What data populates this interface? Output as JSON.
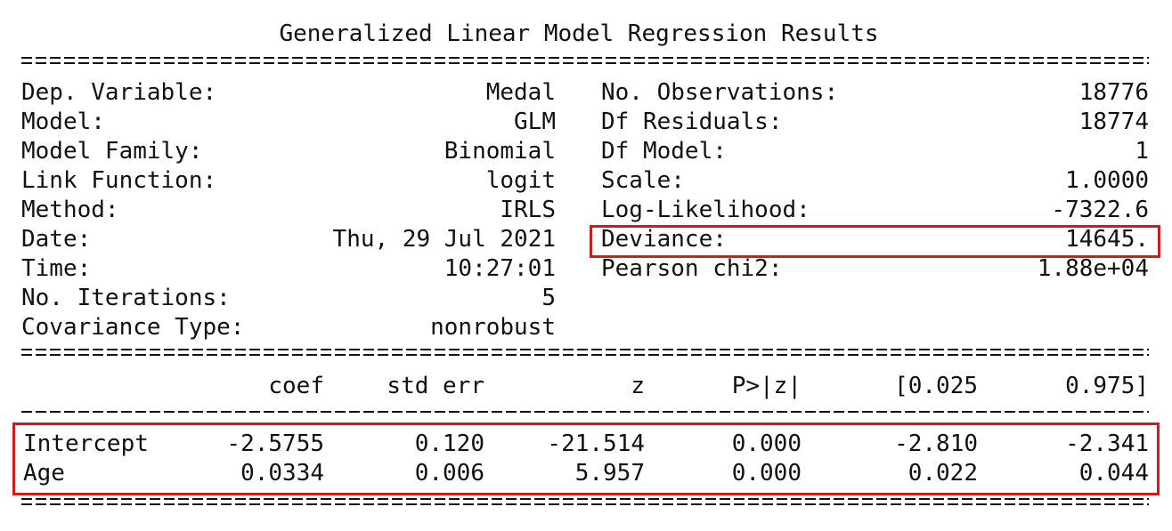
{
  "title": "Generalized Linear Model Regression Results",
  "left_info": [
    {
      "label": "Dep. Variable:",
      "value": "Medal"
    },
    {
      "label": "Model:",
      "value": "GLM"
    },
    {
      "label": "Model Family:",
      "value": "Binomial"
    },
    {
      "label": "Link Function:",
      "value": "logit"
    },
    {
      "label": "Method:",
      "value": "IRLS"
    },
    {
      "label": "Date:",
      "value": "Thu, 29 Jul 2021"
    },
    {
      "label": "Time:",
      "value": "10:27:01"
    },
    {
      "label": "No. Iterations:",
      "value": "5"
    },
    {
      "label": "Covariance Type:",
      "value": "nonrobust"
    }
  ],
  "right_info": [
    {
      "label": "No. Observations:",
      "value": "18776"
    },
    {
      "label": "Df Residuals:",
      "value": "18774"
    },
    {
      "label": "Df Model:",
      "value": "1"
    },
    {
      "label": "Scale:",
      "value": "1.0000"
    },
    {
      "label": "Log-Likelihood:",
      "value": "-7322.6"
    },
    {
      "label": "Deviance:",
      "value": "14645."
    },
    {
      "label": "Pearson chi2:",
      "value": "1.88e+04"
    }
  ],
  "coef_headers": [
    "coef",
    "std err",
    "z",
    "P>|z|",
    "[0.025",
    "0.975]"
  ],
  "coef_rows": [
    {
      "name": "Intercept",
      "values": [
        "-2.5755",
        "0.120",
        "-21.514",
        "0.000",
        "-2.810",
        "-2.341"
      ]
    },
    {
      "name": "Age",
      "values": [
        "0.0334",
        "0.006",
        "5.957",
        "0.000",
        "0.022",
        "0.044"
      ]
    }
  ],
  "highlight_color": "#d11a1a"
}
